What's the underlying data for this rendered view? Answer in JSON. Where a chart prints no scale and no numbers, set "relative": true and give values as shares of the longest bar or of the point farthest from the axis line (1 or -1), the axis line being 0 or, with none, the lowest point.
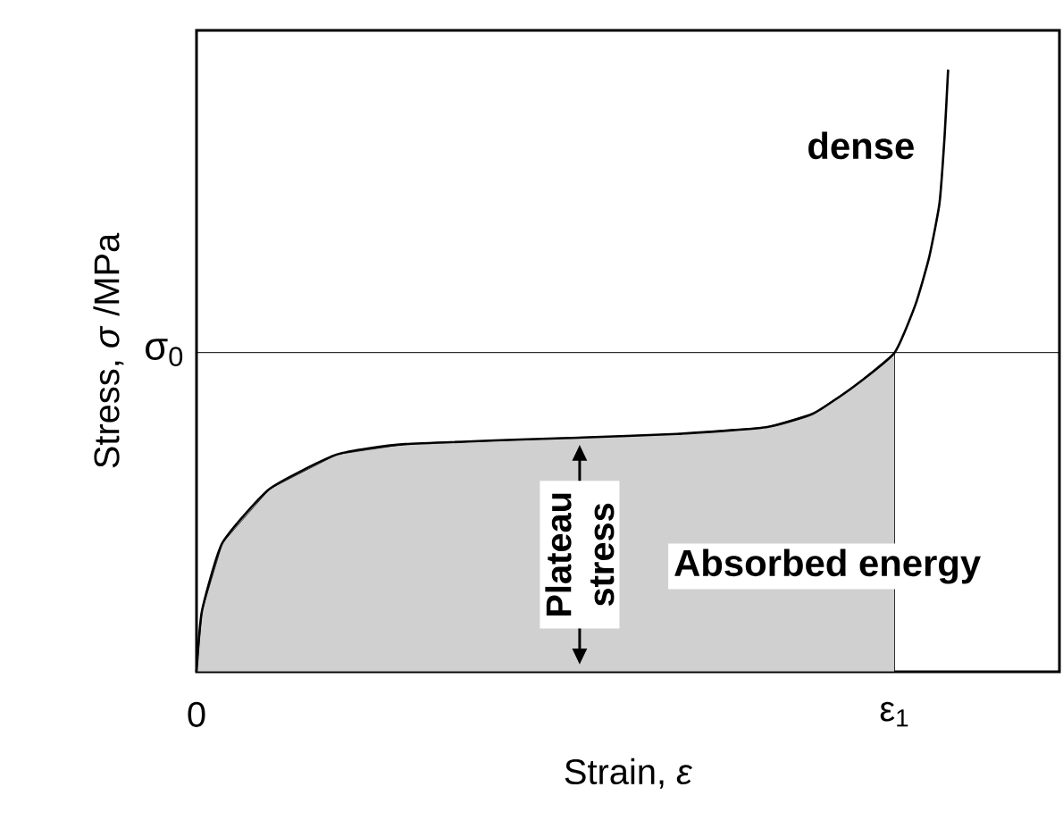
{
  "chart_data": {
    "type": "line",
    "relative": true,
    "xlabel": "Strain, *ε*",
    "ylabel": "Stress, *σ* /MPa",
    "xlim": [
      0,
      1
    ],
    "xticks": [
      {
        "value": 0,
        "label": "0"
      },
      {
        "value": 0.809,
        "label": "ε$_{1}$"
      }
    ],
    "tick_labels": "x",
    "grid": false,
    "series": [
      {
        "type": "area",
        "color": "#d0d0d0",
        "x": [
          0,
          0.0063,
          0.03,
          0.085,
          0.163,
          0.242,
          0.447,
          0.557,
          0.66,
          0.715,
          0.762,
          0.809
        ],
        "values": [
          0,
          0.101,
          0.214,
          0.304,
          0.361,
          0.378,
          0.389,
          0.395,
          0.406,
          0.429,
          0.474,
          0.53
        ]
      },
      {
        "color": "#000000",
        "x": [
          0,
          0.0063,
          0.03,
          0.085,
          0.163,
          0.242,
          0.447,
          0.557,
          0.66,
          0.715,
          0.762,
          0.809,
          0.833,
          0.849,
          0.861,
          0.867,
          0.871
        ],
        "values": [
          0,
          0.101,
          0.214,
          0.304,
          0.361,
          0.378,
          0.389,
          0.395,
          0.406,
          0.429,
          0.474,
          0.53,
          0.609,
          0.688,
          0.778,
          0.891,
          1.0
        ]
      }
    ],
    "ref_lines": [
      {
        "axis": "y",
        "value": 0.53,
        "label": "σ$_{0}$",
        "color": "#000000"
      }
    ],
    "annotations": [
      "dense",
      {
        "text": "Plateau stress",
        "x": 0.444,
        "y": 0.389
      },
      "Absorbed energy"
    ]
  }
}
